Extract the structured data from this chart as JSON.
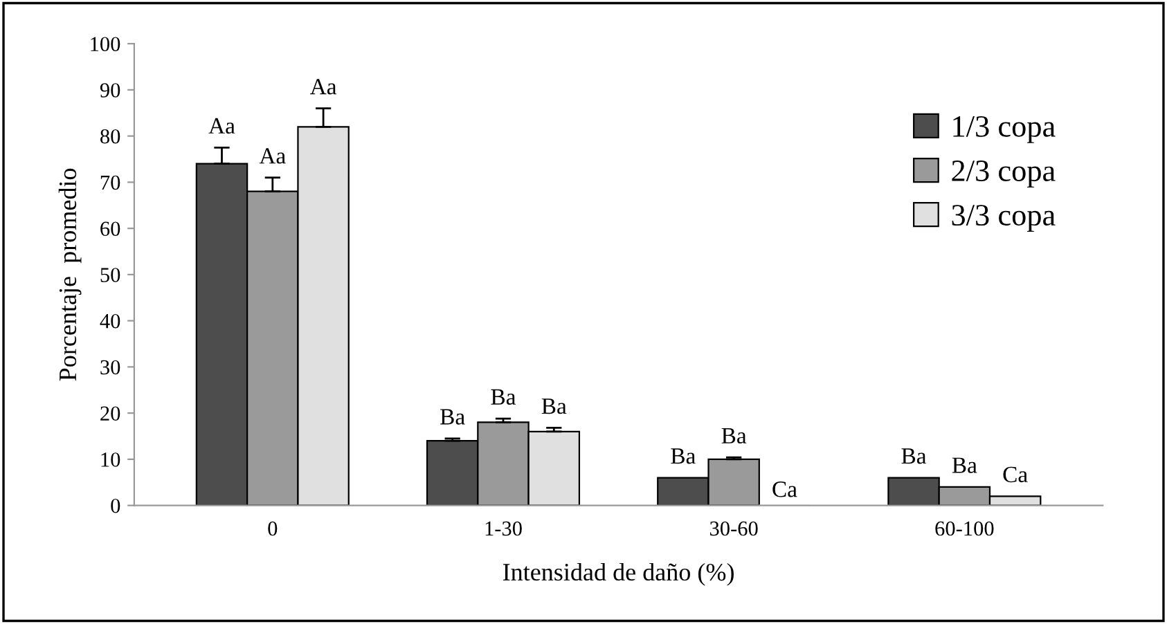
{
  "chart_data": {
    "type": "bar",
    "xlabel": "Intensidad de daño (%)",
    "ylabel": "Porcentaje  promedio",
    "categories": [
      "0",
      "1-30",
      "30-60",
      "60-100"
    ],
    "series": [
      {
        "name": "1/3 copa",
        "color": "#4d4d4d",
        "values": [
          74,
          14,
          6,
          6
        ],
        "errors": [
          3.5,
          0.5,
          null,
          null
        ],
        "value_labels": [
          "Aa",
          "Ba",
          "Ba",
          "Ba"
        ]
      },
      {
        "name": "2/3 copa",
        "color": "#9a9a9a",
        "values": [
          68,
          18,
          10,
          4
        ],
        "errors": [
          3,
          0.8,
          0.4,
          null
        ],
        "value_labels": [
          "Aa",
          "Ba",
          "Ba",
          "Ba"
        ]
      },
      {
        "name": "3/3 copa",
        "color": "#e0e0e0",
        "values": [
          82,
          16,
          0,
          2
        ],
        "errors": [
          4,
          0.8,
          null,
          null
        ],
        "value_labels": [
          "Aa",
          "Ba",
          "Ca",
          "Ca"
        ]
      }
    ],
    "ylim": [
      0,
      100
    ],
    "yticks": [
      0,
      10,
      20,
      30,
      40,
      50,
      60,
      70,
      80,
      90,
      100
    ],
    "grid": false,
    "legend": "right"
  }
}
